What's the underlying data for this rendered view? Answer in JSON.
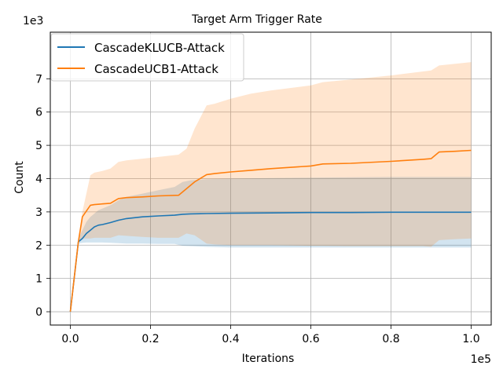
{
  "chart_data": {
    "type": "line",
    "title": "Target Arm Trigger Rate",
    "xlabel": "Iterations",
    "ylabel": "Count",
    "x_offset_label": "1e5",
    "y_offset_label": "1e3",
    "xlim": [
      -0.05,
      1.05
    ],
    "ylim": [
      -0.4,
      8.4
    ],
    "x_ticks": [
      0.0,
      0.2,
      0.4,
      0.6,
      0.8,
      1.0
    ],
    "x_tick_labels": [
      "0.0",
      "0.2",
      "0.4",
      "0.6",
      "0.8",
      "1.0"
    ],
    "y_ticks": [
      0,
      1,
      2,
      3,
      4,
      5,
      6,
      7
    ],
    "y_tick_labels": [
      "0",
      "1",
      "2",
      "3",
      "4",
      "5",
      "6",
      "7"
    ],
    "grid": true,
    "legend_position": "top-left",
    "series": [
      {
        "name": "CascadeKLUCB-Attack",
        "color": "#1f77b4",
        "x": [
          0.0,
          0.02,
          0.03,
          0.04,
          0.05,
          0.06,
          0.07,
          0.08,
          0.1,
          0.12,
          0.14,
          0.18,
          0.22,
          0.26,
          0.28,
          0.3,
          0.34,
          0.4,
          0.5,
          0.6,
          0.7,
          0.8,
          0.9,
          1.0
        ],
        "y": [
          0.0,
          2.1,
          2.2,
          2.35,
          2.45,
          2.55,
          2.6,
          2.62,
          2.68,
          2.75,
          2.8,
          2.85,
          2.88,
          2.9,
          2.93,
          2.94,
          2.95,
          2.96,
          2.97,
          2.98,
          2.98,
          2.99,
          2.99,
          2.99
        ],
        "lower": [
          0.0,
          2.05,
          2.07,
          2.08,
          2.08,
          2.08,
          2.08,
          2.08,
          2.07,
          2.06,
          2.05,
          2.05,
          2.04,
          2.04,
          1.98,
          1.97,
          1.95,
          1.93,
          1.93,
          1.93,
          1.93,
          1.93,
          1.93,
          1.93
        ],
        "upper": [
          0.0,
          2.2,
          2.45,
          2.7,
          2.85,
          2.95,
          3.05,
          3.1,
          3.2,
          3.35,
          3.45,
          3.55,
          3.65,
          3.75,
          3.9,
          3.95,
          3.98,
          4.0,
          4.02,
          4.03,
          4.04,
          4.05,
          4.05,
          4.05
        ]
      },
      {
        "name": "CascadeUCB1-Attack",
        "color": "#ff7f0e",
        "x": [
          0.0,
          0.02,
          0.03,
          0.05,
          0.06,
          0.08,
          0.1,
          0.12,
          0.14,
          0.18,
          0.22,
          0.27,
          0.29,
          0.31,
          0.34,
          0.36,
          0.4,
          0.45,
          0.5,
          0.6,
          0.63,
          0.7,
          0.8,
          0.88,
          0.9,
          0.92,
          0.96,
          1.0
        ],
        "y": [
          0.0,
          2.1,
          2.85,
          3.2,
          3.22,
          3.24,
          3.26,
          3.4,
          3.43,
          3.45,
          3.48,
          3.5,
          3.7,
          3.9,
          4.12,
          4.15,
          4.2,
          4.25,
          4.3,
          4.38,
          4.44,
          4.46,
          4.52,
          4.58,
          4.6,
          4.8,
          4.82,
          4.85
        ],
        "lower": [
          0.0,
          2.08,
          2.2,
          2.2,
          2.22,
          2.22,
          2.22,
          2.3,
          2.28,
          2.25,
          2.22,
          2.22,
          2.35,
          2.3,
          2.05,
          2.02,
          2.0,
          2.0,
          2.0,
          1.98,
          1.98,
          1.97,
          1.97,
          1.97,
          1.95,
          2.15,
          2.18,
          2.2
        ],
        "upper": [
          0.0,
          2.2,
          3.0,
          4.1,
          4.18,
          4.23,
          4.3,
          4.5,
          4.55,
          4.6,
          4.65,
          4.72,
          4.9,
          5.5,
          6.2,
          6.25,
          6.4,
          6.55,
          6.65,
          6.8,
          6.9,
          6.98,
          7.1,
          7.22,
          7.25,
          7.4,
          7.45,
          7.5
        ]
      }
    ]
  }
}
